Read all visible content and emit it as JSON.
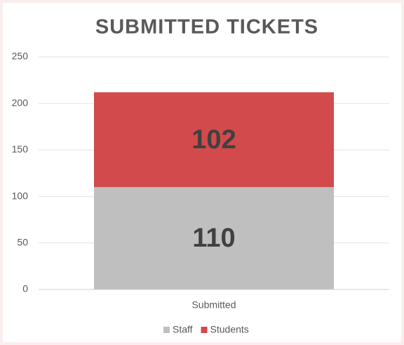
{
  "chart_data": {
    "type": "bar",
    "stacked": true,
    "title": "SUBMITTED TICKETS",
    "categories": [
      "Submitted"
    ],
    "series": [
      {
        "name": "Staff",
        "color": "#bfbfbf",
        "values": [
          110
        ]
      },
      {
        "name": "Students",
        "color": "#d24a4c",
        "values": [
          102
        ]
      }
    ],
    "ylim": [
      0,
      250
    ],
    "yticks": [
      0,
      50,
      100,
      150,
      200,
      250
    ],
    "grid": true,
    "legend": "bottom"
  }
}
